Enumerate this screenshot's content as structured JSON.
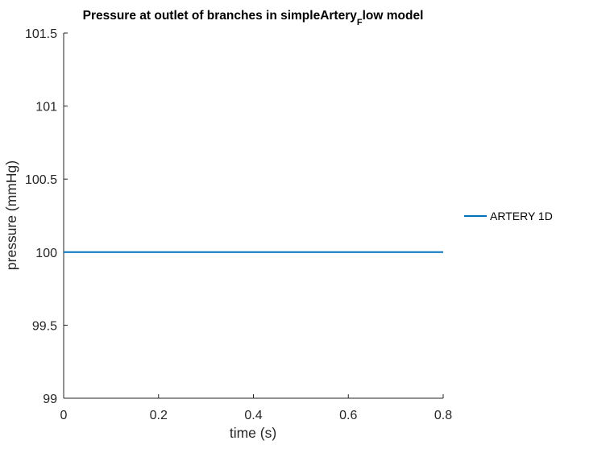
{
  "chart_data": {
    "type": "line",
    "title": {
      "main": "Pressure at outlet of branches in simpleArtery",
      "subscript": "F",
      "rest": "low model"
    },
    "xlabel": "time (s)",
    "ylabel": "pressure (mmHg)",
    "xlim": [
      0,
      0.8
    ],
    "ylim": [
      99,
      101.5
    ],
    "xticks": [
      0,
      0.2,
      0.4,
      0.6,
      0.8
    ],
    "xtick_labels": [
      "0",
      "0.2",
      "0.4",
      "0.6",
      "0.8"
    ],
    "yticks": [
      99,
      99.5,
      100,
      100.5,
      101,
      101.5
    ],
    "ytick_labels": [
      "99",
      "99.5",
      "100",
      "100.5",
      "101",
      "101.5"
    ],
    "grid": false,
    "legend_position": "outside-right",
    "series": [
      {
        "name": "ARTERY 1D",
        "color": "#0072bd",
        "x": [
          0,
          0.1,
          0.2,
          0.3,
          0.4,
          0.5,
          0.6,
          0.7,
          0.8
        ],
        "y": [
          100,
          100,
          100,
          100,
          100,
          100,
          100,
          100,
          100
        ]
      }
    ]
  }
}
